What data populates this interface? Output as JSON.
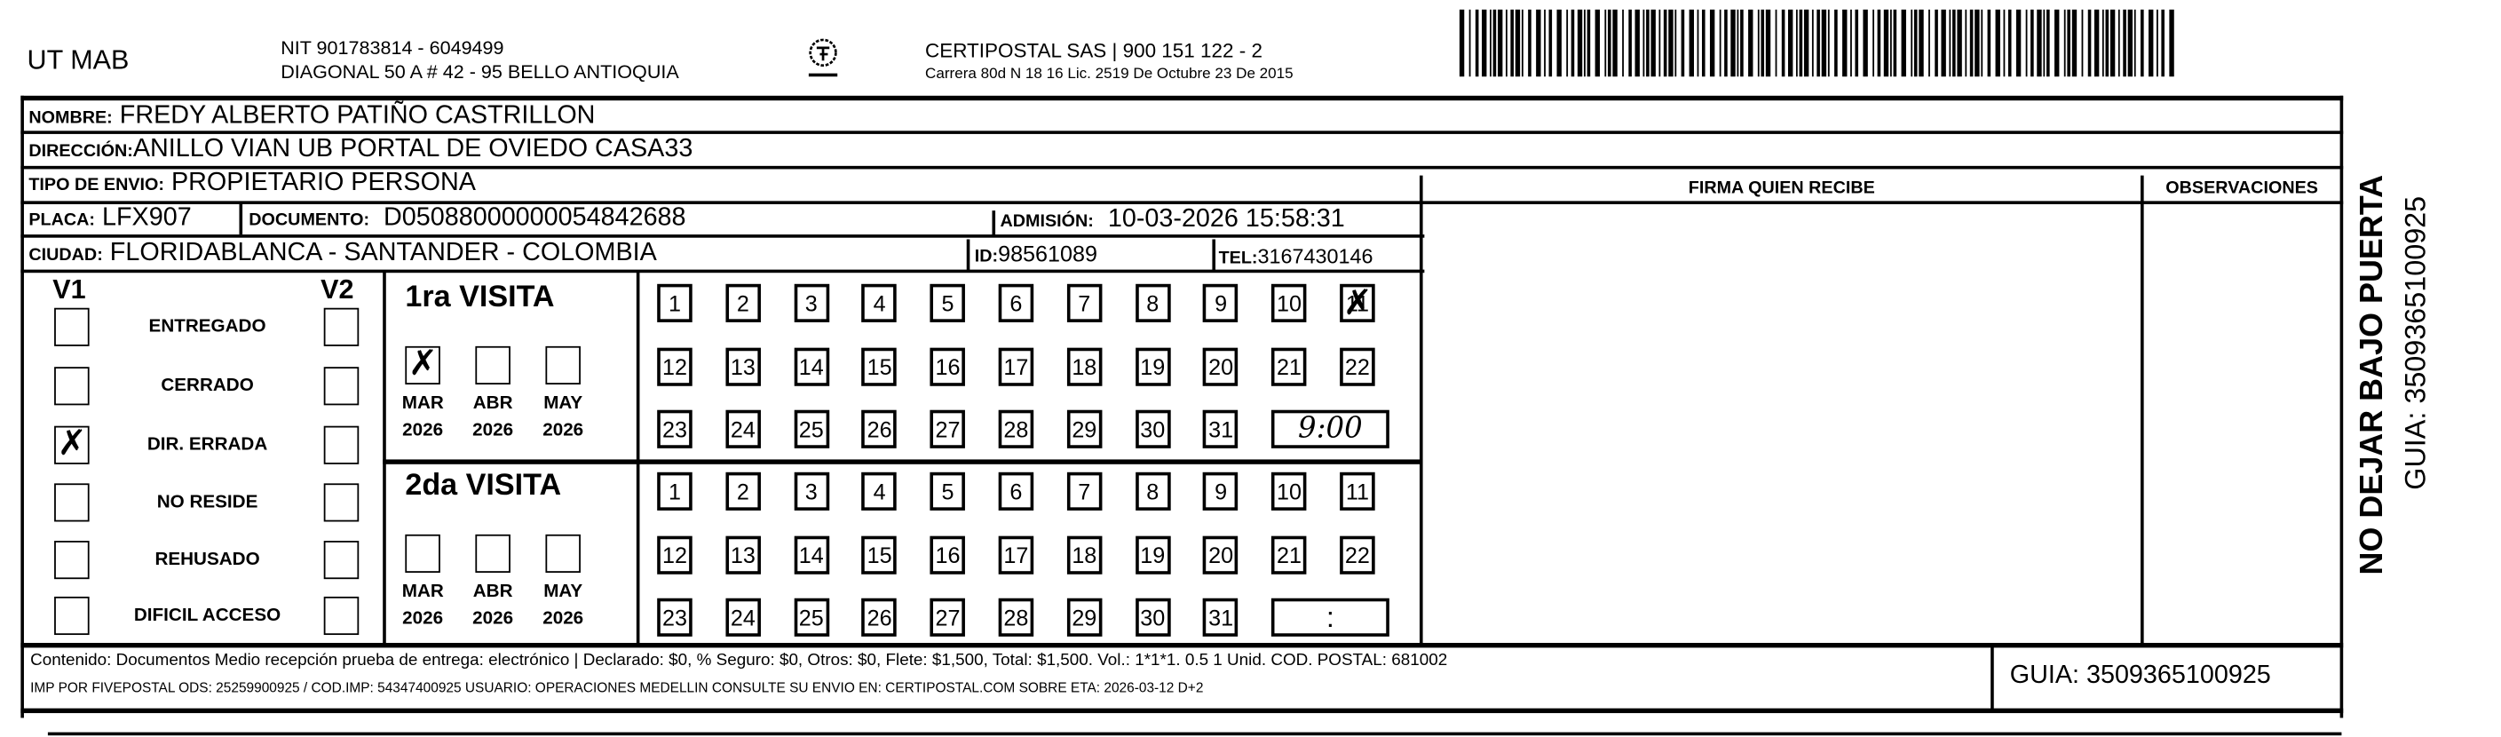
{
  "header": {
    "company": "UT MAB",
    "nit": "NIT 901783814 - 6049499",
    "address": "DIAGONAL 50 A # 42 - 95  BELLO  ANTIOQUIA",
    "logo_icon": "certipostal-logo-icon",
    "carrier": "CERTIPOSTAL SAS | 900 151 122 - 2",
    "carrier_license": "Carrera 80d N 18 16  Lic. 2519 De Octubre 23 De 2015",
    "barcode_icon": "barcode-icon"
  },
  "fields": {
    "nombre_label": "NOMBRE:",
    "nombre": "FREDY ALBERTO PATIÑO CASTRILLON",
    "direccion_label": "DIRECCIÓN:",
    "direccion": "ANILLO VIAN UB PORTAL DE OVIEDO CASA33",
    "tipo_label": "TIPO DE ENVIO:",
    "tipo": "PROPIETARIO PERSONA",
    "placa_label": "PLACA:",
    "placa": "LFX907",
    "documento_label": "DOCUMENTO:",
    "documento": "D05088000000054842688",
    "admision_label": "ADMISIÓN:",
    "admision": "10-03-2026 15:58:31",
    "ciudad_label": "CIUDAD:",
    "ciudad": "FLORIDABLANCA - SANTANDER - COLOMBIA",
    "id_label": "ID:",
    "id": "98561089",
    "tel_label": "TEL:",
    "tel": "3167430146"
  },
  "columns": {
    "firma": "FIRMA QUIEN RECIBE",
    "observaciones": "OBSERVACIONES"
  },
  "status": {
    "v1": "V1",
    "v2": "V2",
    "items": [
      {
        "label": "ENTREGADO",
        "v1": false,
        "v2": false
      },
      {
        "label": "CERRADO",
        "v1": false,
        "v2": false
      },
      {
        "label": "DIR. ERRADA",
        "v1": true,
        "v2": false
      },
      {
        "label": "NO RESIDE",
        "v1": false,
        "v2": false
      },
      {
        "label": "REHUSADO",
        "v1": false,
        "v2": false
      },
      {
        "label": "DIFICIL ACCESO",
        "v1": false,
        "v2": false
      }
    ]
  },
  "visits": [
    {
      "title": "1ra VISITA",
      "months": [
        {
          "m": "MAR",
          "y": "2026",
          "checked": true
        },
        {
          "m": "ABR",
          "y": "2026",
          "checked": false
        },
        {
          "m": "MAY",
          "y": "2026",
          "checked": false
        }
      ],
      "marked_day": 11,
      "time": "9:00"
    },
    {
      "title": "2da VISITA",
      "months": [
        {
          "m": "MAR",
          "y": "2026",
          "checked": false
        },
        {
          "m": "ABR",
          "y": "2026",
          "checked": false
        },
        {
          "m": "MAY",
          "y": "2026",
          "checked": false
        }
      ],
      "marked_day": null,
      "time": ":"
    }
  ],
  "footer": {
    "line1": "Contenido: Documentos Medio recepción prueba de entrega: electrónico | Declarado: $0, % Seguro: $0, Otros: $0, Flete: $1,500, Total: $1,500. Vol.: 1*1*1. 0.5  1 Unid. COD. POSTAL: 681002",
    "line2": "IMP POR FIVEPOSTAL ODS: 25259900925 / COD.IMP: 54347400925 USUARIO: OPERACIONES MEDELLIN CONSULTE SU ENVIO EN: CERTIPOSTAL.COM SOBRE ETA: 2026-03-12 D+2",
    "guia": "GUIA: 3509365100925"
  },
  "side": {
    "warning": "NO DEJAR BAJO PUERTA",
    "guia": "GUIA: 3509365100925"
  }
}
